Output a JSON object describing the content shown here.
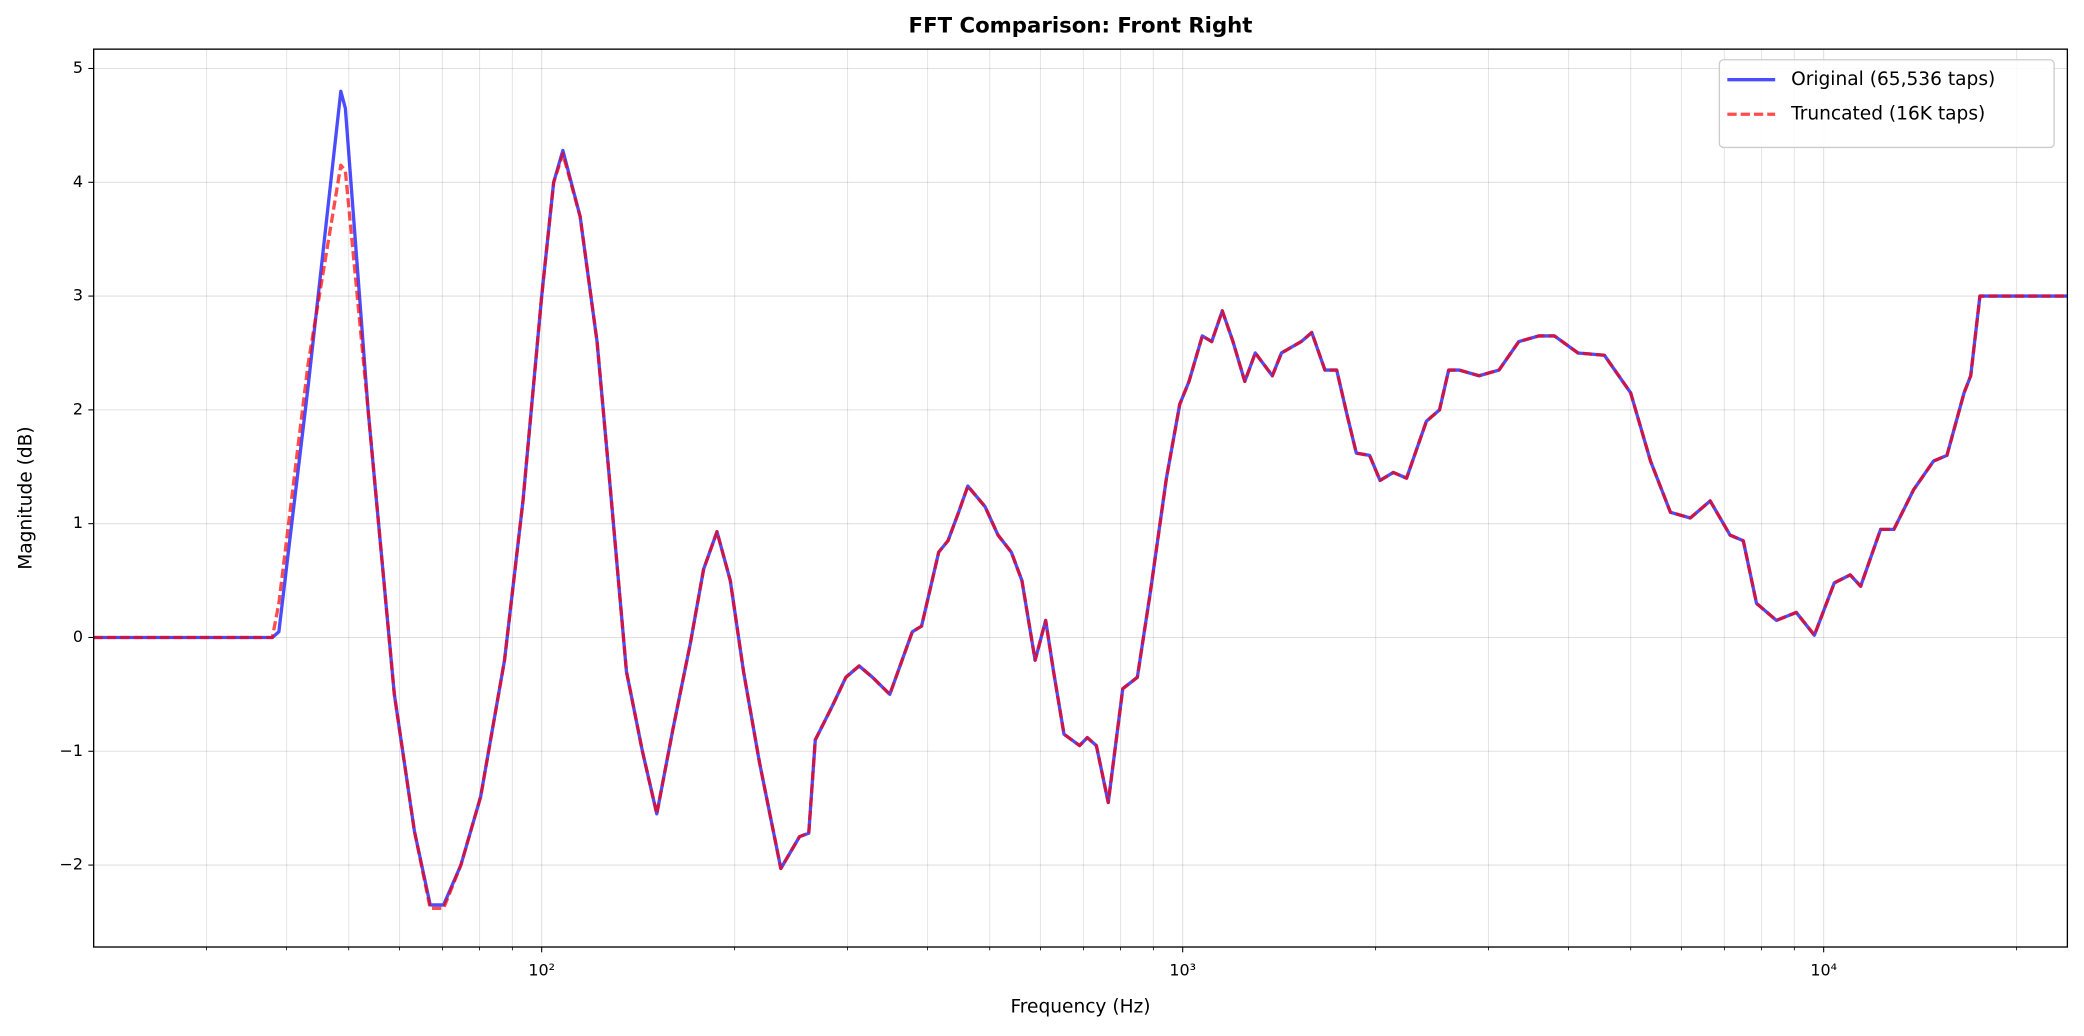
{
  "chart_data": {
    "type": "line",
    "title": "FFT Comparison: Front Right",
    "xlabel": "Frequency (Hz)",
    "ylabel": "Magnitude (dB)",
    "xscale": "log",
    "grid": true,
    "legend": "upper right",
    "xlim": [
      20,
      24000
    ],
    "ylim": [
      -2.72,
      5.17
    ],
    "xticks": [
      {
        "value": 100,
        "label": "10²"
      },
      {
        "value": 1000,
        "label": "10³"
      },
      {
        "value": 10000,
        "label": "10⁴"
      }
    ],
    "xminorticks": [
      30,
      40,
      50,
      60,
      70,
      80,
      90,
      200,
      300,
      400,
      500,
      600,
      700,
      800,
      900,
      2000,
      3000,
      4000,
      5000,
      6000,
      7000,
      8000,
      9000,
      20000
    ],
    "yticks": [
      {
        "value": -2,
        "label": "−2"
      },
      {
        "value": -1,
        "label": "−1"
      },
      0,
      1,
      2,
      3,
      4,
      5
    ],
    "x": [
      20,
      38,
      38.9,
      43.2,
      48.6,
      49.4,
      53.6,
      58.9,
      63.3,
      67,
      70.3,
      74.8,
      80.3,
      87.5,
      93.5,
      100,
      104.4,
      107.9,
      114.8,
      122,
      128,
      135.6,
      143.6,
      151.2,
      160.3,
      170.6,
      178.9,
      187.7,
      196.9,
      206.5,
      218.7,
      236.1,
      252.5,
      261,
      267.2,
      284.2,
      298.2,
      312.8,
      328.2,
      349.2,
      378.6,
      391.4,
      416.3,
      430.4,
      447.1,
      462.2,
      491.6,
      515.1,
      540.3,
      561.3,
      588.6,
      611.3,
      628.9,
      652.9,
      690.4,
      709.9,
      733.4,
      765.4,
      806.4,
      849.7,
      890.4,
      943.3,
      989.6,
      1023,
      1073,
      1110,
      1153,
      1198,
      1250,
      1298,
      1380,
      1426,
      1531,
      1590,
      1667,
      1739,
      1806,
      1866,
      1957,
      2032,
      2131,
      2235,
      2400,
      2516,
      2600,
      2700,
      2900,
      3115,
      3345,
      3593,
      3802,
      4138,
      4549,
      4999,
      5369,
      5767,
      6194,
      6652,
      7144,
      7492,
      7857,
      8439,
      9063,
      9672,
      10389,
      11000,
      11420,
      12270,
      12870,
      13820,
      14840,
      15570,
      16560,
      16960,
      17530,
      24000
    ],
    "series": [
      {
        "name": "Original (65,536 taps)",
        "color": "#0000ff",
        "linestyle": "solid",
        "values": [
          0,
          0,
          0.05,
          2.2,
          4.8,
          4.65,
          2.0,
          -0.5,
          -1.7,
          -2.35,
          -2.35,
          -2.0,
          -1.4,
          -0.2,
          1.2,
          3.0,
          4.0,
          4.28,
          3.7,
          2.6,
          1.3,
          -0.3,
          -1.0,
          -1.55,
          -0.8,
          -0.05,
          0.6,
          0.93,
          0.5,
          -0.3,
          -1.1,
          -2.03,
          -1.75,
          -1.72,
          -0.9,
          -0.6,
          -0.35,
          -0.25,
          -0.35,
          -0.5,
          0.05,
          0.1,
          0.75,
          0.85,
          1.1,
          1.33,
          1.15,
          0.9,
          0.75,
          0.5,
          -0.2,
          0.15,
          -0.3,
          -0.85,
          -0.95,
          -0.88,
          -0.95,
          -1.45,
          -0.45,
          -0.35,
          0.4,
          1.4,
          2.05,
          2.25,
          2.65,
          2.6,
          2.87,
          2.6,
          2.25,
          2.5,
          2.3,
          2.5,
          2.6,
          2.68,
          2.35,
          2.35,
          1.95,
          1.62,
          1.6,
          1.38,
          1.45,
          1.4,
          1.9,
          2.0,
          2.35,
          2.35,
          2.3,
          2.35,
          2.6,
          2.65,
          2.65,
          2.5,
          2.48,
          2.15,
          1.55,
          1.1,
          1.05,
          1.2,
          0.9,
          0.85,
          0.3,
          0.15,
          0.22,
          0.02,
          0.48,
          0.55,
          0.45,
          0.95,
          0.95,
          1.3,
          1.55,
          1.6,
          2.15,
          2.3,
          3.0,
          3.0
        ]
      },
      {
        "name": "Truncated (16K taps)",
        "color": "#ff0000",
        "linestyle": "dashed",
        "values": [
          0,
          0,
          0.3,
          2.4,
          4.15,
          4.1,
          2.0,
          -0.5,
          -1.7,
          -2.38,
          -2.38,
          -2.0,
          -1.4,
          -0.2,
          1.2,
          3.0,
          4.0,
          4.25,
          3.7,
          2.6,
          1.3,
          -0.3,
          -1.0,
          -1.55,
          -0.8,
          -0.05,
          0.6,
          0.93,
          0.5,
          -0.3,
          -1.1,
          -2.03,
          -1.75,
          -1.72,
          -0.9,
          -0.6,
          -0.35,
          -0.25,
          -0.35,
          -0.5,
          0.05,
          0.1,
          0.75,
          0.85,
          1.1,
          1.33,
          1.15,
          0.9,
          0.75,
          0.5,
          -0.2,
          0.15,
          -0.3,
          -0.85,
          -0.95,
          -0.88,
          -0.95,
          -1.45,
          -0.45,
          -0.35,
          0.4,
          1.4,
          2.05,
          2.25,
          2.65,
          2.6,
          2.87,
          2.6,
          2.25,
          2.5,
          2.3,
          2.5,
          2.6,
          2.68,
          2.35,
          2.35,
          1.95,
          1.62,
          1.6,
          1.38,
          1.45,
          1.4,
          1.9,
          2.0,
          2.35,
          2.35,
          2.3,
          2.35,
          2.6,
          2.65,
          2.65,
          2.5,
          2.48,
          2.15,
          1.55,
          1.1,
          1.05,
          1.2,
          0.9,
          0.85,
          0.3,
          0.15,
          0.22,
          0.02,
          0.48,
          0.55,
          0.45,
          0.95,
          0.95,
          1.3,
          1.55,
          1.6,
          2.15,
          2.3,
          3.0,
          3.0
        ]
      }
    ]
  }
}
